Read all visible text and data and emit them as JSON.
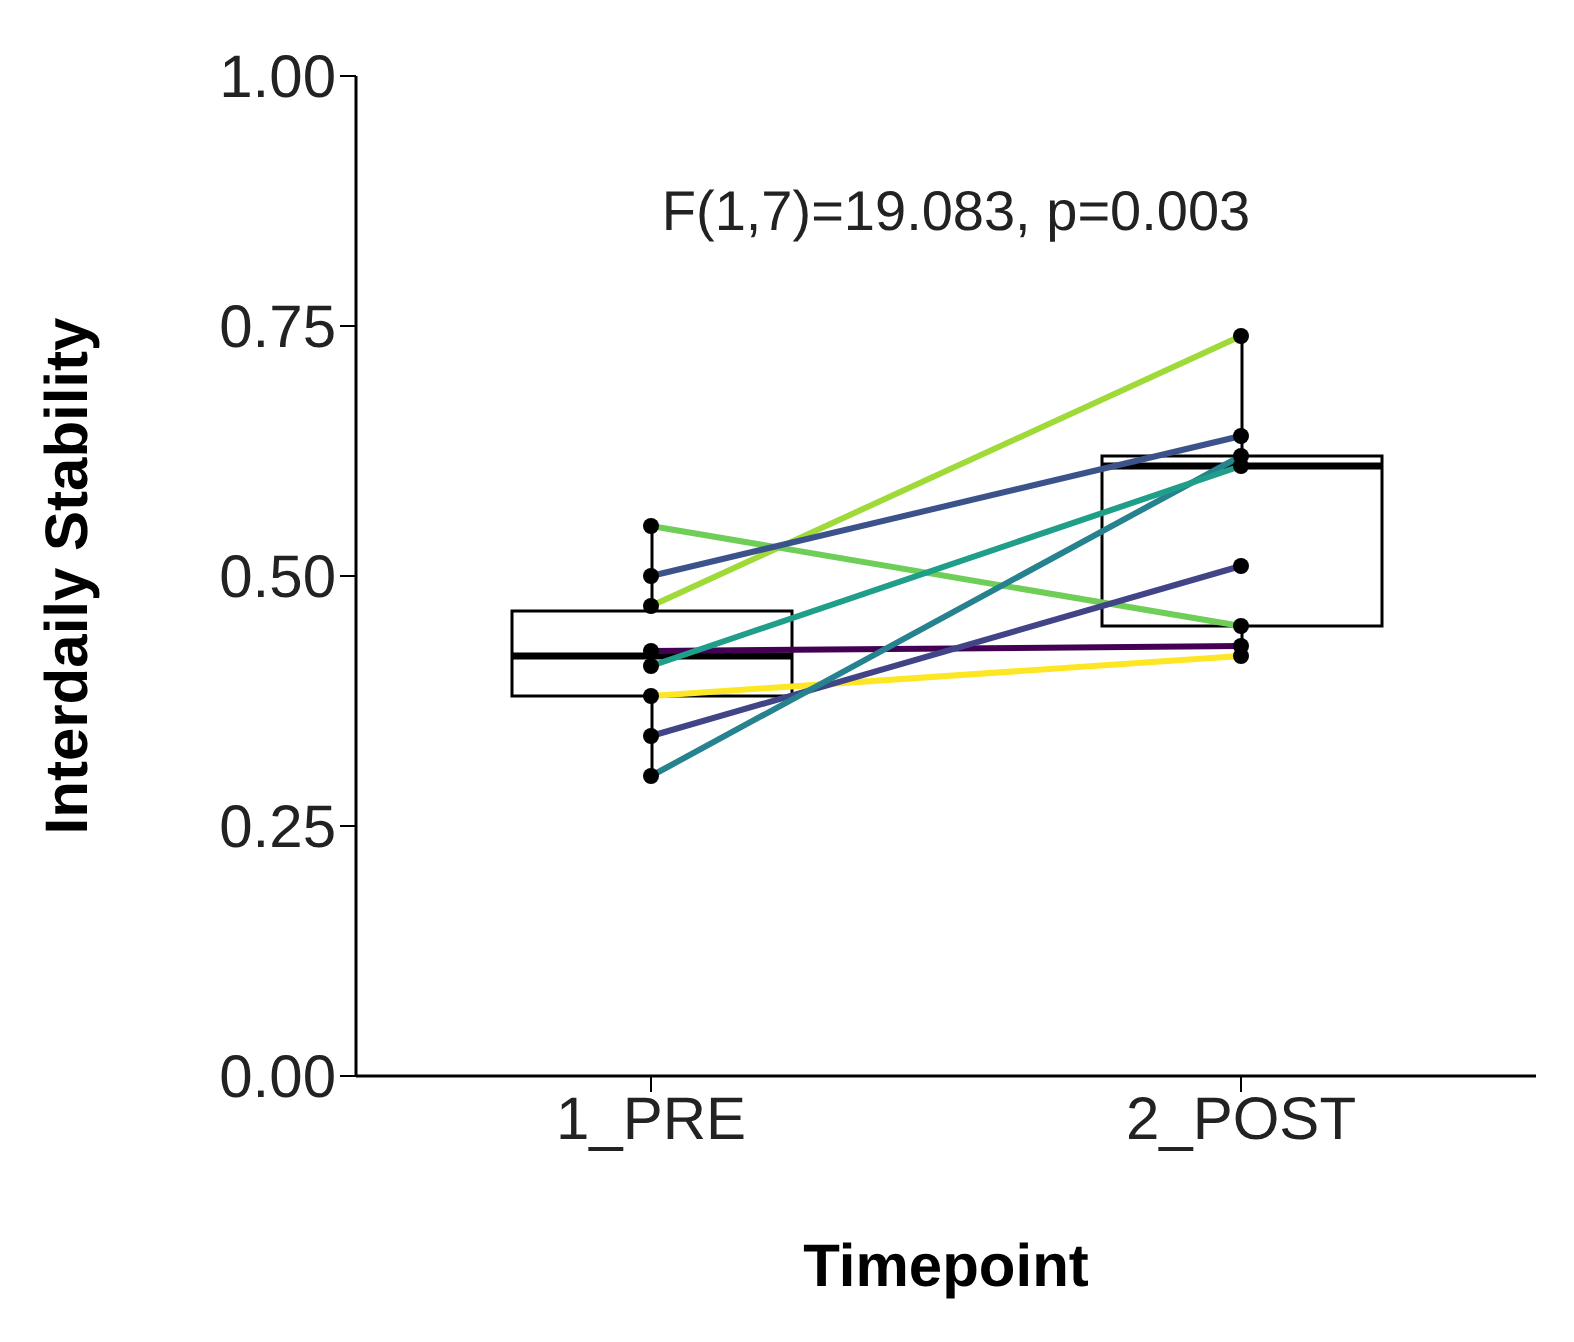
{
  "chart_data": {
    "type": "box",
    "xlabel": "Timepoint",
    "ylabel": "Interdaily Stability",
    "categories": [
      "1_PRE",
      "2_POST"
    ],
    "ylim": [
      0,
      1
    ],
    "yticks": [
      {
        "value": 0,
        "label": "0.00"
      },
      {
        "value": 0.25,
        "label": "0.25"
      },
      {
        "value": 0.5,
        "label": "0.50"
      },
      {
        "value": 0.75,
        "label": "0.75"
      },
      {
        "value": 1,
        "label": "1.00"
      }
    ],
    "boxes": [
      {
        "low": 0.3,
        "q1": 0.38,
        "median": 0.42,
        "q3": 0.465,
        "high": 0.55
      },
      {
        "low": 0.42,
        "q1": 0.45,
        "median": 0.61,
        "q3": 0.62,
        "high": 0.74
      }
    ],
    "series": [
      {
        "type": "line",
        "color": "#a0da39",
        "values": [
          0.47,
          0.74
        ]
      },
      {
        "type": "line",
        "color": "#6ece58",
        "values": [
          0.55,
          0.45
        ]
      },
      {
        "type": "line",
        "color": "#3b528b",
        "values": [
          0.5,
          0.64
        ]
      },
      {
        "type": "line",
        "color": "#440154",
        "values": [
          0.425,
          0.43
        ]
      },
      {
        "type": "line",
        "color": "#fde725",
        "values": [
          0.38,
          0.42
        ]
      },
      {
        "type": "line",
        "color": "#414487",
        "values": [
          0.34,
          0.51
        ]
      },
      {
        "type": "line",
        "color": "#26828e",
        "values": [
          0.3,
          0.62
        ]
      },
      {
        "type": "line",
        "color": "#1f9e89",
        "values": [
          0.41,
          0.61
        ]
      }
    ],
    "marker": "circle",
    "grid": false,
    "annotations": [
      "F(1,7)=19.083, p=0.003"
    ]
  }
}
